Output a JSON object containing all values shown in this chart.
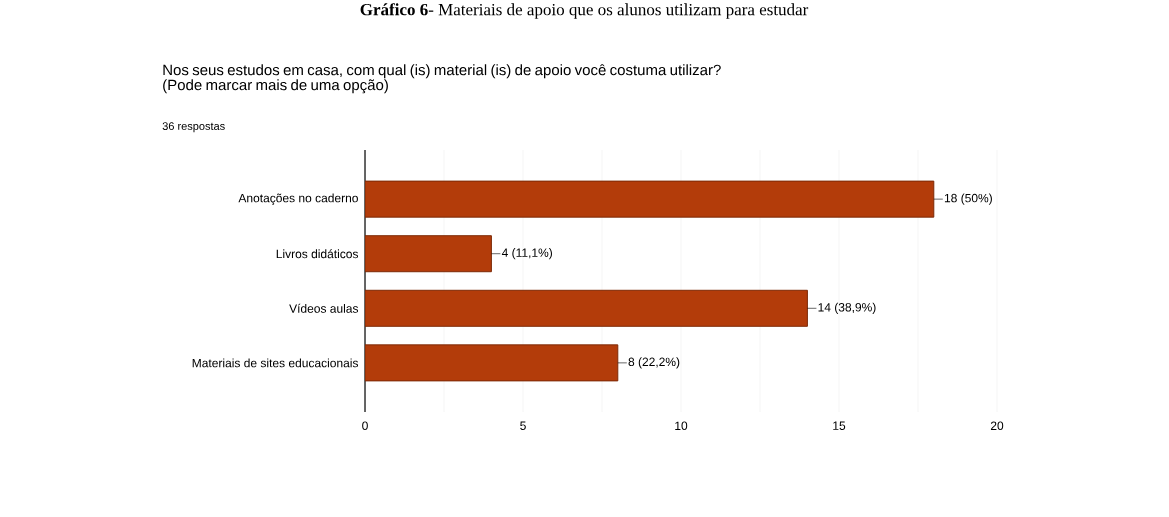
{
  "chart_data": {
    "type": "bar",
    "orientation": "horizontal",
    "title": "**Gráfico 6**- Materiais de apoio que os alunos utilizam para estudar",
    "subtitle": "Nos seus estudos em casa, com  qual (is) material (is) de apoio você costuma utilizar? (Pode marcar mais de uma opção)",
    "annotations": [
      "36 respostas"
    ],
    "categories": [
      "Anotações no caderno",
      "Livros didáticos",
      "Vídeos aulas",
      "Materiais de sites educacionais"
    ],
    "values": [
      18,
      4,
      14,
      8
    ],
    "value_labels": [
      "18 (50%)",
      "4 (11,1%)",
      "14 (38,9%)",
      "8 (22,2%)"
    ],
    "color": "#b33c0a",
    "xlim": [
      0,
      20
    ],
    "xticks": [
      0,
      {
        "value": 2.5,
        "label": null
      },
      5,
      {
        "value": 7.5,
        "label": null
      },
      10,
      {
        "value": 12.5,
        "label": null
      },
      15,
      {
        "value": 17.5,
        "label": null
      },
      20
    ],
    "grid": "x"
  }
}
